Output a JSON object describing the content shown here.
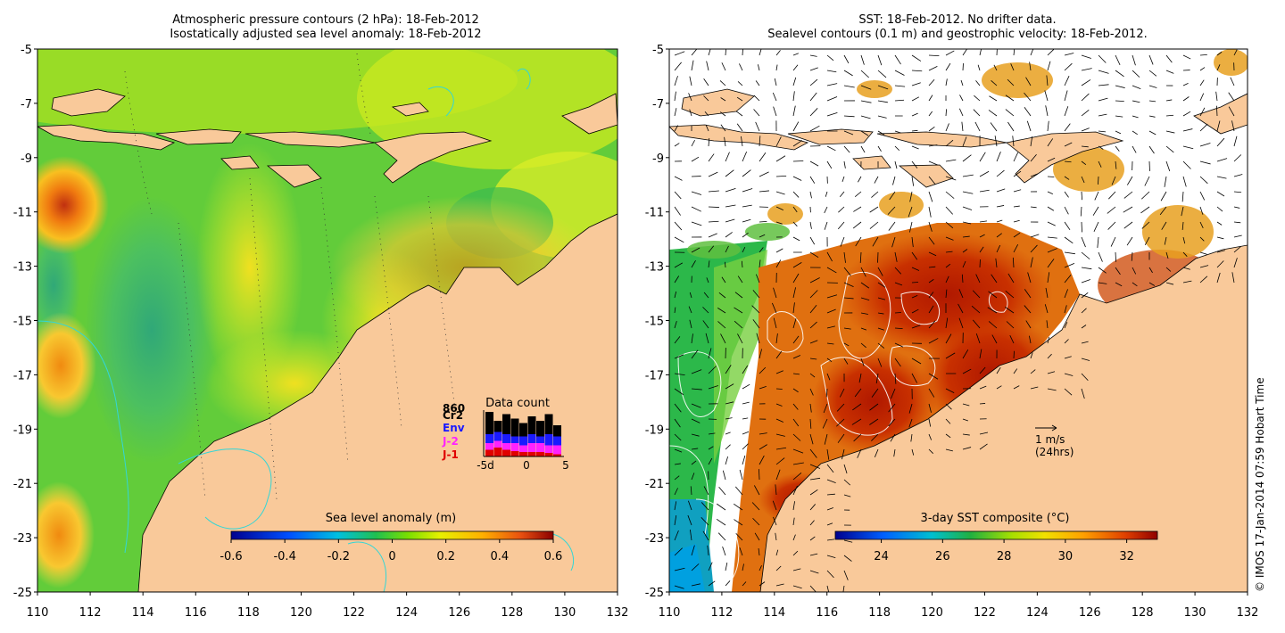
{
  "colors": {
    "land": "#f9c99a",
    "coast": "#000000",
    "cyan_contour": "#33d6d6",
    "sst_white": "#ffffff",
    "env": "#1a1aff",
    "j2": "#ff22ff",
    "j1": "#e00000"
  },
  "left_panel": {
    "title_line1": "Atmospheric pressure contours (2 hPa): 18-Feb-2012",
    "title_line2": "Isostatically adjusted sea level anomaly: 18-Feb-2012",
    "colorbar": {
      "label": "Sea level anomaly (m)",
      "ticks": [
        "-0.6",
        "-0.4",
        "-0.2",
        "0",
        "0.2",
        "0.4",
        "0.6"
      ],
      "range": [
        -0.6,
        0.6
      ]
    },
    "inset": {
      "title": "Data count",
      "max_label": "860",
      "legend": [
        "Cr2",
        "Env",
        "J-2",
        "J-1"
      ],
      "x_ticks": [
        "-5d",
        "0",
        "5"
      ],
      "bars": [
        {
          "cr2": 1.0,
          "env": 0.5,
          "j2": 0.3,
          "j1": 0.15
        },
        {
          "cr2": 0.8,
          "env": 0.55,
          "j2": 0.35,
          "j1": 0.2
        },
        {
          "cr2": 0.95,
          "env": 0.5,
          "j2": 0.3,
          "j1": 0.15
        },
        {
          "cr2": 0.85,
          "env": 0.45,
          "j2": 0.3,
          "j1": 0.12
        },
        {
          "cr2": 0.75,
          "env": 0.45,
          "j2": 0.25,
          "j1": 0.1
        },
        {
          "cr2": 0.9,
          "env": 0.5,
          "j2": 0.3,
          "j1": 0.1
        },
        {
          "cr2": 0.8,
          "env": 0.45,
          "j2": 0.3,
          "j1": 0.1
        },
        {
          "cr2": 0.95,
          "env": 0.5,
          "j2": 0.25,
          "j1": 0.08
        },
        {
          "cr2": 0.7,
          "env": 0.45,
          "j2": 0.25,
          "j1": 0.05
        }
      ]
    }
  },
  "right_panel": {
    "title_line1": "SST: 18-Feb-2012. No drifter data.",
    "title_line2": "Sealevel contours (0.1 m) and geostrophic velocity: 18-Feb-2012.",
    "colorbar": {
      "label": "3-day SST composite (°C)",
      "ticks": [
        "24",
        "26",
        "28",
        "30",
        "32"
      ],
      "range": [
        22.5,
        33
      ]
    },
    "scale_arrow": {
      "line1": "1 m/s",
      "line2": "(24hrs)"
    },
    "credit": "© IMOS 17-Jan-2014 07:59 Hobart Time"
  },
  "axes": {
    "lat_ticks": [
      "-5",
      "-7",
      "-9",
      "-11",
      "-13",
      "-15",
      "-17",
      "-19",
      "-21",
      "-23",
      "-25"
    ],
    "lon_ticks": [
      "110",
      "112",
      "114",
      "116",
      "118",
      "120",
      "122",
      "124",
      "126",
      "128",
      "130",
      "132"
    ],
    "lon_range": [
      110,
      132
    ],
    "lat_range": [
      -25,
      -5
    ]
  }
}
